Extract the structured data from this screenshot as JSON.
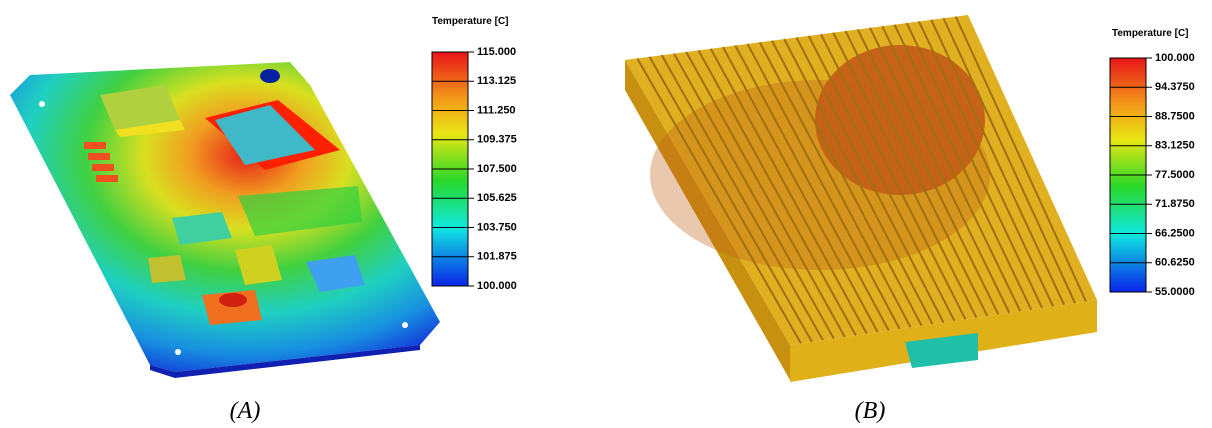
{
  "panels": [
    {
      "legend_title": "Temperature [C]",
      "ticks": [
        "115.000",
        "113.125",
        "111.250",
        "109.375",
        "107.500",
        "105.625",
        "103.750",
        "101.875",
        "100.000"
      ],
      "caption": "(A)"
    },
    {
      "legend_title": "Temperature [C]",
      "ticks": [
        "100.000",
        "94.3750",
        "88.7500",
        "83.1250",
        "77.5000",
        "71.8750",
        "66.2500",
        "60.6250",
        "55.0000"
      ],
      "caption": "(B)"
    }
  ]
}
